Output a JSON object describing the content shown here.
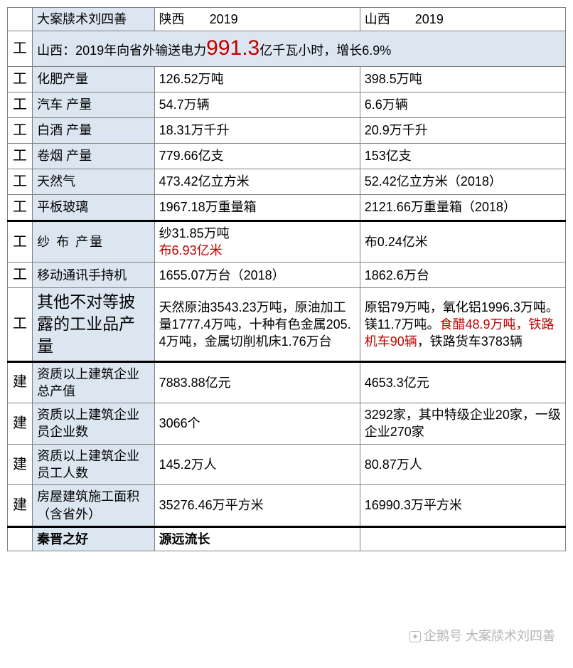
{
  "header": {
    "corner": "大案牍术刘四善",
    "col_a_prov": "陕西",
    "col_a_year": "2019",
    "col_b_prov": "山西",
    "col_b_year": "2019"
  },
  "banner": {
    "cat": "工",
    "pre": "山西：2019年向省外输送电力",
    "num": "991.3",
    "post": "亿千瓦小时，增长6.9%"
  },
  "rows": [
    {
      "cat": "工",
      "label": "化肥产量",
      "a": "126.52万吨",
      "b": "398.5万吨",
      "a_red": false,
      "b_red": false
    },
    {
      "cat": "工",
      "label": "汽车 产量",
      "a": "54.7万辆",
      "b": "6.6万辆",
      "a_red": false,
      "b_red": false
    },
    {
      "cat": "工",
      "label": "白酒 产量",
      "a": "18.31万千升",
      "b": "20.9万千升",
      "a_red": false,
      "b_red": true
    },
    {
      "cat": "工",
      "label": "卷烟 产量",
      "a": "779.66亿支",
      "b": "153亿支",
      "a_red": true,
      "b_red": false
    },
    {
      "cat": "工",
      "label": "天然气",
      "a": "473.42亿立方米",
      "b": "52.42亿立方米（2018）",
      "a_red": false,
      "b_red": false
    }
  ],
  "glass": {
    "cat": "工",
    "label": "平板玻璃",
    "a": "1967.18万重量箱",
    "b": "2121.66万重量箱（2018）"
  },
  "yarn": {
    "cat": "工",
    "label": "纱 布 产量",
    "a_line1": "纱31.85万吨",
    "a_line2": "布6.93亿米",
    "b": "布0.24亿米"
  },
  "mobile": {
    "cat": "工",
    "label": "移动通讯手持机",
    "a": "1655.07万台（2018）",
    "b": "1862.6万台"
  },
  "other": {
    "cat": "工",
    "label": "其他不对等披露的工业品产量",
    "a": "天然原油3543.23万吨，原油加工量1777.4万吨，十种有色金属205.4万吨，金属切削机床1.76万台",
    "b_pre": "原铝79万吨，氧化铝1996.3万吨。镁11.7万吨。",
    "b_red": "食醋48.9万吨，铁路机车90辆",
    "b_post": "，铁路货车3783辆"
  },
  "cons1": {
    "cat": "建",
    "label": "资质以上建筑企业总产值",
    "a": "7883.88亿元",
    "b": "4653.3亿元",
    "a_red": true
  },
  "cons2": {
    "cat": "建",
    "label": "资质以上建筑企业员企业数",
    "a": "3066个",
    "b": "3292家，其中特级企业20家，一级企业270家"
  },
  "cons3": {
    "cat": "建",
    "label": "资质以上建筑企业员工人数",
    "a": "145.2万人",
    "b": "80.87万人",
    "a_red": true
  },
  "cons4": {
    "cat": "建",
    "label": "房屋建筑施工面积（含省外）",
    "a": "35276.46万平方米",
    "b": "16990.3万平方米"
  },
  "footer": {
    "a": "秦晋之好",
    "b": "源远流长"
  },
  "watermark": {
    "label": "企鹅号 大案牍术刘四善"
  },
  "colors": {
    "header_bg": "#dce6f1",
    "border": "#808080",
    "thick_border": "#000000",
    "text": "#000000",
    "red": "#c00000"
  }
}
